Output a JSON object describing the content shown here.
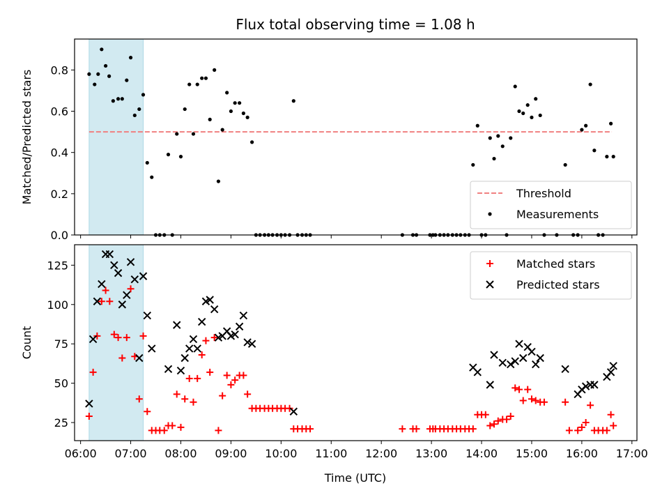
{
  "figure_title": "Flux total observing time = 1.08 h",
  "xlabel": "Time (UTC)",
  "x_ticks": [
    "06:00",
    "07:00",
    "08:00",
    "09:00",
    "10:00",
    "11:00",
    "12:00",
    "13:00",
    "14:00",
    "15:00",
    "16:00",
    "17:00"
  ],
  "colors": {
    "threshold": "#f08080",
    "highlight": "#add8e6",
    "matched": "#ff0000",
    "predicted": "#000000",
    "measurement": "#000000"
  },
  "chart_data": [
    {
      "type": "scatter",
      "ylabel": "Matched/Predicted stars",
      "xlim": [
        5.88,
        17.1
      ],
      "ylim": [
        0,
        0.95
      ],
      "y_ticks": [
        "0.0",
        "0.2",
        "0.4",
        "0.6",
        "0.8"
      ],
      "highlight_span": [
        6.17,
        7.25
      ],
      "threshold": {
        "name": "Threshold",
        "y": 0.5,
        "x_range": [
          6.17,
          16.6
        ]
      },
      "legend": {
        "position": "lower right",
        "entries": [
          "Threshold",
          "Measurements"
        ]
      },
      "series": [
        {
          "name": "Measurements",
          "points": [
            [
              6.17,
              0.78
            ],
            [
              6.28,
              0.73
            ],
            [
              6.35,
              0.78
            ],
            [
              6.42,
              0.9
            ],
            [
              6.5,
              0.82
            ],
            [
              6.57,
              0.77
            ],
            [
              6.65,
              0.65
            ],
            [
              6.75,
              0.66
            ],
            [
              6.83,
              0.66
            ],
            [
              6.92,
              0.75
            ],
            [
              7.0,
              0.86
            ],
            [
              7.08,
              0.58
            ],
            [
              7.17,
              0.61
            ],
            [
              7.25,
              0.68
            ],
            [
              7.33,
              0.35
            ],
            [
              7.42,
              0.28
            ],
            [
              7.5,
              0.0
            ],
            [
              7.58,
              0.0
            ],
            [
              7.67,
              0.0
            ],
            [
              7.75,
              0.39
            ],
            [
              7.83,
              0.0
            ],
            [
              7.92,
              0.49
            ],
            [
              8.0,
              0.38
            ],
            [
              8.08,
              0.61
            ],
            [
              8.17,
              0.73
            ],
            [
              8.25,
              0.49
            ],
            [
              8.33,
              0.73
            ],
            [
              8.42,
              0.76
            ],
            [
              8.5,
              0.76
            ],
            [
              8.58,
              0.56
            ],
            [
              8.67,
              0.8
            ],
            [
              8.75,
              0.26
            ],
            [
              8.83,
              0.51
            ],
            [
              8.92,
              0.69
            ],
            [
              9.0,
              0.6
            ],
            [
              9.08,
              0.64
            ],
            [
              9.17,
              0.64
            ],
            [
              9.25,
              0.59
            ],
            [
              9.33,
              0.57
            ],
            [
              9.42,
              0.45
            ],
            [
              9.5,
              0.0
            ],
            [
              9.58,
              0.0
            ],
            [
              9.67,
              0.0
            ],
            [
              9.75,
              0.0
            ],
            [
              9.83,
              0.0
            ],
            [
              9.92,
              0.0
            ],
            [
              10.0,
              0.0
            ],
            [
              10.08,
              0.0
            ],
            [
              10.17,
              0.0
            ],
            [
              10.25,
              0.65
            ],
            [
              10.33,
              0.0
            ],
            [
              10.42,
              0.0
            ],
            [
              10.5,
              0.0
            ],
            [
              10.58,
              0.0
            ],
            [
              12.42,
              0.0
            ],
            [
              12.63,
              0.0
            ],
            [
              12.7,
              0.0
            ],
            [
              12.97,
              0.0
            ],
            [
              13.03,
              0.0
            ],
            [
              13.08,
              0.0
            ],
            [
              13.17,
              0.0
            ],
            [
              13.25,
              0.0
            ],
            [
              13.33,
              0.0
            ],
            [
              13.42,
              0.0
            ],
            [
              13.5,
              0.0
            ],
            [
              13.58,
              0.0
            ],
            [
              13.67,
              0.0
            ],
            [
              13.75,
              0.0
            ],
            [
              13.83,
              0.34
            ],
            [
              13.92,
              0.53
            ],
            [
              14.0,
              0.0
            ],
            [
              14.08,
              0.0
            ],
            [
              14.17,
              0.47
            ],
            [
              14.25,
              0.37
            ],
            [
              14.33,
              0.48
            ],
            [
              14.42,
              0.43
            ],
            [
              14.5,
              0.0
            ],
            [
              14.58,
              0.47
            ],
            [
              14.67,
              0.72
            ],
            [
              14.75,
              0.6
            ],
            [
              14.83,
              0.59
            ],
            [
              14.92,
              0.63
            ],
            [
              15.0,
              0.57
            ],
            [
              15.08,
              0.66
            ],
            [
              15.17,
              0.58
            ],
            [
              15.25,
              0.0
            ],
            [
              15.5,
              0.0
            ],
            [
              15.67,
              0.34
            ],
            [
              15.83,
              0.0
            ],
            [
              15.92,
              0.0
            ],
            [
              16.0,
              0.51
            ],
            [
              16.08,
              0.53
            ],
            [
              16.17,
              0.73
            ],
            [
              16.25,
              0.41
            ],
            [
              16.33,
              0.0
            ],
            [
              16.42,
              0.0
            ],
            [
              16.5,
              0.38
            ],
            [
              16.58,
              0.54
            ],
            [
              16.63,
              0.38
            ]
          ]
        }
      ]
    },
    {
      "type": "scatter",
      "ylabel": "Count",
      "xlim": [
        5.88,
        17.1
      ],
      "ylim": [
        13.5,
        138
      ],
      "y_ticks": [
        "25",
        "50",
        "75",
        "100",
        "125"
      ],
      "highlight_span": [
        6.17,
        7.25
      ],
      "legend": {
        "position": "upper right",
        "entries": [
          "Matched stars",
          "Predicted stars"
        ]
      },
      "series": [
        {
          "name": "Matched stars",
          "marker": "+",
          "points": [
            [
              6.17,
              29
            ],
            [
              6.25,
              57
            ],
            [
              6.33,
              80
            ],
            [
              6.42,
              102
            ],
            [
              6.5,
              109
            ],
            [
              6.58,
              102
            ],
            [
              6.67,
              81
            ],
            [
              6.75,
              79
            ],
            [
              6.83,
              66
            ],
            [
              6.92,
              79
            ],
            [
              7.0,
              110
            ],
            [
              7.08,
              67
            ],
            [
              7.17,
              40
            ],
            [
              7.25,
              80
            ],
            [
              7.33,
              32
            ],
            [
              7.42,
              20
            ],
            [
              7.5,
              20
            ],
            [
              7.58,
              20
            ],
            [
              7.67,
              20
            ],
            [
              7.75,
              23
            ],
            [
              7.83,
              23
            ],
            [
              7.92,
              43
            ],
            [
              8.0,
              22
            ],
            [
              8.08,
              40
            ],
            [
              8.17,
              53
            ],
            [
              8.25,
              38
            ],
            [
              8.33,
              53
            ],
            [
              8.42,
              68
            ],
            [
              8.5,
              77
            ],
            [
              8.58,
              57
            ],
            [
              8.67,
              79
            ],
            [
              8.75,
              20
            ],
            [
              8.83,
              42
            ],
            [
              8.92,
              55
            ],
            [
              9.0,
              49
            ],
            [
              9.08,
              52
            ],
            [
              9.17,
              55
            ],
            [
              9.25,
              55
            ],
            [
              9.33,
              43
            ],
            [
              9.42,
              34
            ],
            [
              9.5,
              34
            ],
            [
              9.58,
              34
            ],
            [
              9.67,
              34
            ],
            [
              9.75,
              34
            ],
            [
              9.83,
              34
            ],
            [
              9.92,
              34
            ],
            [
              10.0,
              34
            ],
            [
              10.08,
              34
            ],
            [
              10.17,
              34
            ],
            [
              10.25,
              21
            ],
            [
              10.33,
              21
            ],
            [
              10.42,
              21
            ],
            [
              10.5,
              21
            ],
            [
              10.58,
              21
            ],
            [
              12.42,
              21
            ],
            [
              12.63,
              21
            ],
            [
              12.7,
              21
            ],
            [
              12.97,
              21
            ],
            [
              13.03,
              21
            ],
            [
              13.08,
              21
            ],
            [
              13.17,
              21
            ],
            [
              13.25,
              21
            ],
            [
              13.33,
              21
            ],
            [
              13.42,
              21
            ],
            [
              13.5,
              21
            ],
            [
              13.58,
              21
            ],
            [
              13.67,
              21
            ],
            [
              13.75,
              21
            ],
            [
              13.83,
              21
            ],
            [
              13.92,
              30
            ],
            [
              14.0,
              30
            ],
            [
              14.08,
              30
            ],
            [
              14.17,
              23
            ],
            [
              14.25,
              24
            ],
            [
              14.33,
              26
            ],
            [
              14.42,
              27
            ],
            [
              14.5,
              27
            ],
            [
              14.58,
              29
            ],
            [
              14.67,
              47
            ],
            [
              14.75,
              46
            ],
            [
              14.83,
              39
            ],
            [
              14.92,
              46
            ],
            [
              15.0,
              40
            ],
            [
              15.08,
              39
            ],
            [
              15.17,
              38
            ],
            [
              15.25,
              38
            ],
            [
              15.67,
              38
            ],
            [
              15.75,
              20
            ],
            [
              15.92,
              20
            ],
            [
              16.0,
              22
            ],
            [
              16.08,
              25
            ],
            [
              16.17,
              36
            ],
            [
              16.25,
              20
            ],
            [
              16.33,
              20
            ],
            [
              16.42,
              20
            ],
            [
              16.5,
              20
            ],
            [
              16.58,
              30
            ],
            [
              16.63,
              23
            ]
          ]
        },
        {
          "name": "Predicted stars",
          "marker": "x",
          "points": [
            [
              6.17,
              37
            ],
            [
              6.25,
              78
            ],
            [
              6.33,
              102
            ],
            [
              6.42,
              113
            ],
            [
              6.5,
              132
            ],
            [
              6.58,
              132
            ],
            [
              6.67,
              125
            ],
            [
              6.75,
              120
            ],
            [
              6.83,
              100
            ],
            [
              6.92,
              106
            ],
            [
              7.0,
              127
            ],
            [
              7.08,
              116
            ],
            [
              7.17,
              66
            ],
            [
              7.25,
              118
            ],
            [
              7.33,
              93
            ],
            [
              7.42,
              72
            ],
            [
              7.75,
              59
            ],
            [
              7.92,
              87
            ],
            [
              8.0,
              58
            ],
            [
              8.08,
              66
            ],
            [
              8.17,
              72
            ],
            [
              8.25,
              78
            ],
            [
              8.33,
              72
            ],
            [
              8.42,
              89
            ],
            [
              8.5,
              102
            ],
            [
              8.58,
              103
            ],
            [
              8.67,
              97
            ],
            [
              8.75,
              79
            ],
            [
              8.83,
              80
            ],
            [
              8.92,
              83
            ],
            [
              9.0,
              80
            ],
            [
              9.08,
              81
            ],
            [
              9.17,
              86
            ],
            [
              9.25,
              93
            ],
            [
              9.33,
              76
            ],
            [
              9.42,
              75
            ],
            [
              10.25,
              32
            ],
            [
              13.83,
              60
            ],
            [
              13.92,
              57
            ],
            [
              14.17,
              49
            ],
            [
              14.25,
              68
            ],
            [
              14.42,
              63
            ],
            [
              14.58,
              62
            ],
            [
              14.67,
              64
            ],
            [
              14.75,
              75
            ],
            [
              14.83,
              66
            ],
            [
              14.92,
              73
            ],
            [
              15.0,
              70
            ],
            [
              15.08,
              62
            ],
            [
              15.17,
              66
            ],
            [
              15.67,
              59
            ],
            [
              15.92,
              43
            ],
            [
              16.0,
              46
            ],
            [
              16.08,
              48
            ],
            [
              16.17,
              49
            ],
            [
              16.25,
              49
            ],
            [
              16.5,
              54
            ],
            [
              16.58,
              57
            ],
            [
              16.63,
              61
            ]
          ]
        }
      ]
    }
  ]
}
